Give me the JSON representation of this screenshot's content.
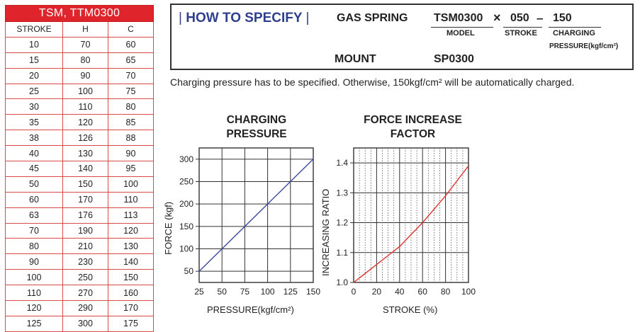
{
  "table": {
    "title": "TSM, TTM0300",
    "headers": [
      "STROKE",
      "H",
      "C"
    ],
    "rows": [
      [
        "10",
        "70",
        "60"
      ],
      [
        "15",
        "80",
        "65"
      ],
      [
        "20",
        "90",
        "70"
      ],
      [
        "25",
        "100",
        "75"
      ],
      [
        "30",
        "110",
        "80"
      ],
      [
        "35",
        "120",
        "85"
      ],
      [
        "38",
        "126",
        "88"
      ],
      [
        "40",
        "130",
        "90"
      ],
      [
        "45",
        "140",
        "95"
      ],
      [
        "50",
        "150",
        "100"
      ],
      [
        "60",
        "170",
        "110"
      ],
      [
        "63",
        "176",
        "113"
      ],
      [
        "70",
        "190",
        "120"
      ],
      [
        "80",
        "210",
        "130"
      ],
      [
        "90",
        "230",
        "140"
      ],
      [
        "100",
        "250",
        "150"
      ],
      [
        "110",
        "270",
        "160"
      ],
      [
        "120",
        "290",
        "170"
      ],
      [
        "125",
        "300",
        "175"
      ]
    ]
  },
  "specify": {
    "heading": "HOW TO SPECIFY",
    "bar": "|",
    "gas_spring": "GAS SPRING",
    "model_code": "TSM0300",
    "times": "×",
    "stroke_code": "050",
    "dash": "–",
    "pressure_code": "150",
    "model_label": "MODEL",
    "stroke_label": "STROKE",
    "charging_label": "CHARGING",
    "pressure_label": "PRESSURE(kgf/cm²)",
    "mount_label": "MOUNT",
    "mount_code": "SP0300"
  },
  "note": "Charging pressure has to be specified. Otherwise, 150kgf/cm² will be automatically charged.",
  "chart_data": [
    {
      "type": "line",
      "title_line1": "CHARGING",
      "title_line2": "PRESSURE",
      "xlabel": "PRESSURE(kgf/cm²)",
      "ylabel": "FORCE (kgf)",
      "xlim": [
        25,
        150
      ],
      "ylim": [
        25,
        325
      ],
      "xticks": [
        "25",
        "50",
        "75",
        "100",
        "125",
        "150"
      ],
      "xtick_values": [
        25,
        50,
        75,
        100,
        125,
        150
      ],
      "yticks": [
        "50",
        "100",
        "150",
        "200",
        "250",
        "300"
      ],
      "ytick_values": [
        50,
        100,
        150,
        200,
        250,
        300
      ],
      "grid": true,
      "color": "#3b4a9c",
      "series": [
        {
          "x": [
            25,
            150
          ],
          "y": [
            50,
            300
          ]
        }
      ]
    },
    {
      "type": "line",
      "title_line1": "FORCE INCREASE",
      "title_line2": "FACTOR",
      "xlabel": "STROKE (%)",
      "ylabel": "INCREASING RATIO",
      "xlim": [
        0,
        100
      ],
      "ylim": [
        1.0,
        1.45
      ],
      "xticks": [
        "0",
        "20",
        "40",
        "60",
        "80",
        "100"
      ],
      "xtick_values": [
        0,
        20,
        40,
        60,
        80,
        100
      ],
      "yticks": [
        "1.0",
        "1.1",
        "1.2",
        "1.3",
        "1.4"
      ],
      "ytick_values": [
        1.0,
        1.1,
        1.2,
        1.3,
        1.4
      ],
      "grid": true,
      "color": "#e0332f",
      "series": [
        {
          "x": [
            0,
            10,
            20,
            30,
            40,
            50,
            60,
            70,
            80,
            90,
            100
          ],
          "y": [
            1.0,
            1.03,
            1.06,
            1.09,
            1.12,
            1.16,
            1.2,
            1.245,
            1.29,
            1.34,
            1.39
          ]
        }
      ]
    }
  ]
}
